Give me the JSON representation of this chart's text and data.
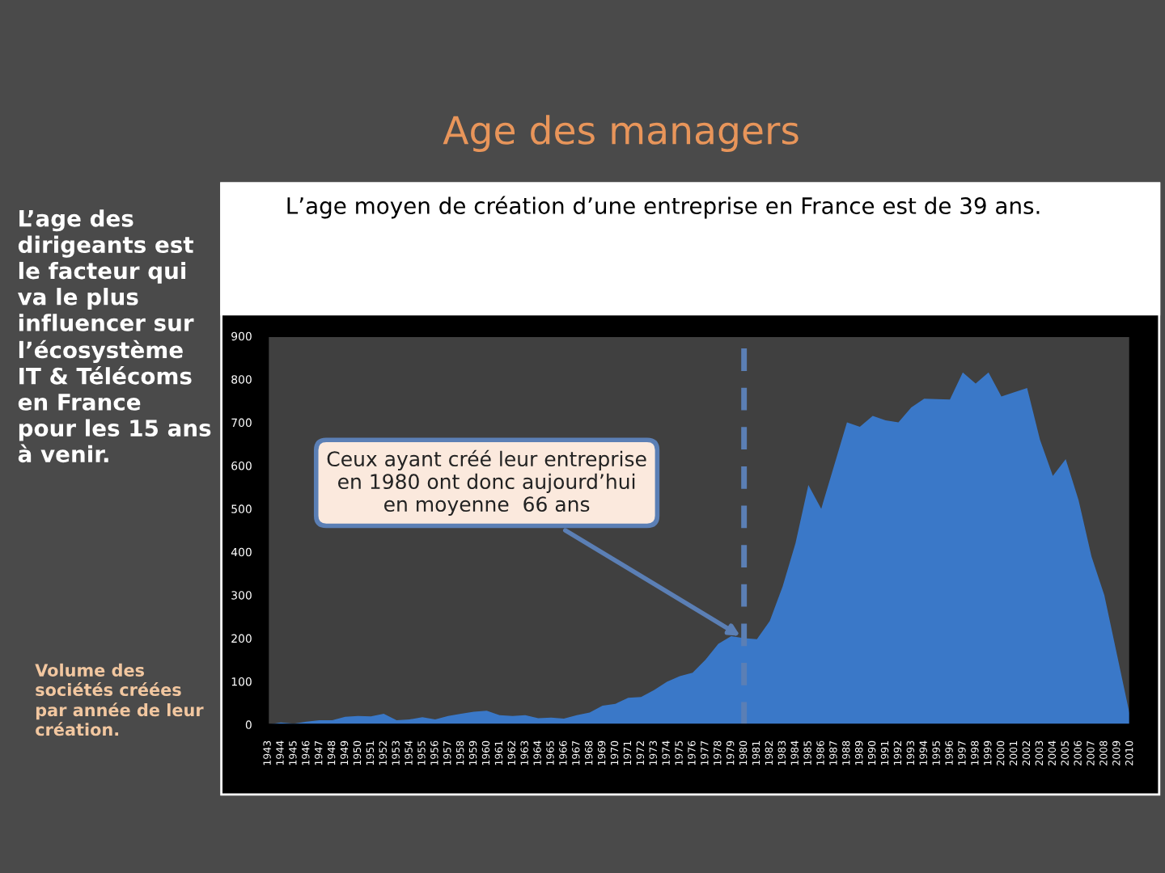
{
  "chart_data": {
    "type": "area",
    "title": "Age des managers",
    "subtitle": "L’age moyen de création d’une entreprise en France est de 39 ans.",
    "x": [
      1943,
      1944,
      1945,
      1946,
      1947,
      1948,
      1949,
      1950,
      1951,
      1952,
      1953,
      1954,
      1955,
      1956,
      1957,
      1958,
      1959,
      1960,
      1961,
      1962,
      1963,
      1964,
      1965,
      1966,
      1967,
      1968,
      1969,
      1970,
      1971,
      1972,
      1973,
      1974,
      1975,
      1976,
      1977,
      1978,
      1979,
      1980,
      1981,
      1982,
      1983,
      1984,
      1985,
      1986,
      1987,
      1988,
      1989,
      1990,
      1991,
      1992,
      1993,
      1994,
      1995,
      1996,
      1997,
      1998,
      1999,
      2000,
      2001,
      2002,
      2003,
      2004,
      2005,
      2006,
      2007,
      2008,
      2009,
      2010
    ],
    "series": [
      {
        "color": "#3a78c8",
        "values": [
          0,
          5,
          2,
          7,
          10,
          10,
          18,
          20,
          19,
          25,
          10,
          12,
          17,
          12,
          20,
          25,
          30,
          32,
          22,
          20,
          22,
          15,
          16,
          14,
          22,
          28,
          44,
          48,
          62,
          64,
          80,
          99,
          112,
          120,
          150,
          187,
          205,
          200,
          198,
          240,
          320,
          420,
          555,
          500,
          600,
          700,
          690,
          715,
          705,
          700,
          735,
          755,
          754,
          753,
          816,
          790,
          816,
          760,
          770,
          780,
          660,
          576,
          615,
          520,
          390,
          300,
          160,
          20
        ]
      }
    ],
    "xlim": [
      1943,
      2010
    ],
    "xticks": [
      1943,
      1944,
      1945,
      1946,
      1947,
      1948,
      1949,
      1950,
      1951,
      1952,
      1953,
      1954,
      1955,
      1956,
      1957,
      1958,
      1959,
      1960,
      1961,
      1962,
      1963,
      1964,
      1965,
      1966,
      1967,
      1968,
      1969,
      1970,
      1971,
      1972,
      1973,
      1974,
      1975,
      1976,
      1977,
      1978,
      1979,
      1980,
      1981,
      1982,
      1983,
      1984,
      1985,
      1986,
      1987,
      1988,
      1989,
      1990,
      1991,
      1992,
      1993,
      1994,
      1995,
      1996,
      1997,
      1998,
      1999,
      2000,
      2001,
      2002,
      2003,
      2004,
      2005,
      2006,
      2007,
      2008,
      2009,
      2010
    ],
    "ylim": [
      0,
      900
    ],
    "yticks": [
      0,
      100,
      200,
      300,
      400,
      500,
      600,
      700,
      800,
      900
    ],
    "ref_lines": [
      {
        "axis": "x",
        "value": 1980,
        "color": "#5b7fb5",
        "line_style": "dashed"
      }
    ],
    "grid": false,
    "legend": false,
    "annotations": [
      {
        "text": "Ceux ayant créé leur entreprise\nen 1980 ont donc aujourd’hui\nen moyenne  66 ans",
        "x": 1980,
        "y": 200
      },
      "L’age des\ndirigeants est\nle facteur qui\nva le plus\ninfluencer sur\nl’écosystème\nIT & Télécoms\nen France\npour les 15 ans\nà venir.",
      "Volume des\nsociétés créées\npar année de leur\ncréation."
    ]
  }
}
